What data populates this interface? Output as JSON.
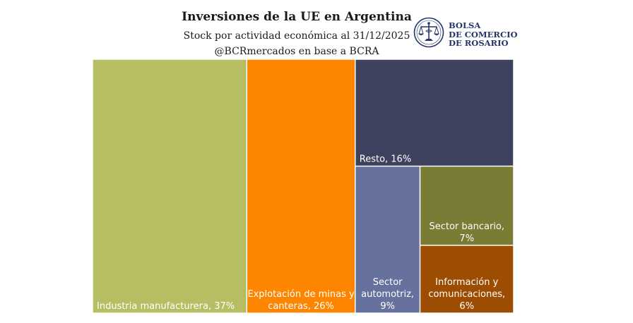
{
  "header": {
    "title": "Inversiones de la UE en Argentina",
    "subtitle": "Stock por actividad económica al 31/12/2025",
    "source": "@BCRmercados en base a BCRA"
  },
  "logo": {
    "lines": [
      "BOLSA",
      "DE COMERCIO",
      "DE ROSARIO"
    ],
    "color": "#25356a"
  },
  "chart_data": {
    "type": "treemap",
    "unit": "%",
    "items": [
      {
        "label_lines": [
          "Industria manufacturera, 37%"
        ],
        "name": "Industria manufacturera",
        "value": 37,
        "color": "#b7bd62"
      },
      {
        "label_lines": [
          "Explotación de minas y",
          "canteras, 26%"
        ],
        "name": "Explotación de minas y canteras",
        "value": 26,
        "color": "#fe8500"
      },
      {
        "label_lines": [
          "Resto, 16%"
        ],
        "name": "Resto",
        "value": 16,
        "color": "#3e425e"
      },
      {
        "label_lines": [
          "Sector",
          "automotriz,",
          "9%"
        ],
        "name": "Sector automotriz",
        "value": 9,
        "color": "#67719e"
      },
      {
        "label_lines": [
          "Sector bancario,",
          "7%"
        ],
        "name": "Sector bancario",
        "value": 7,
        "color": "#7a7b34"
      },
      {
        "label_lines": [
          "Información y",
          "comunicaciones,",
          "6%"
        ],
        "name": "Información y comunicaciones",
        "value": 6,
        "color": "#9c4d02"
      }
    ]
  }
}
